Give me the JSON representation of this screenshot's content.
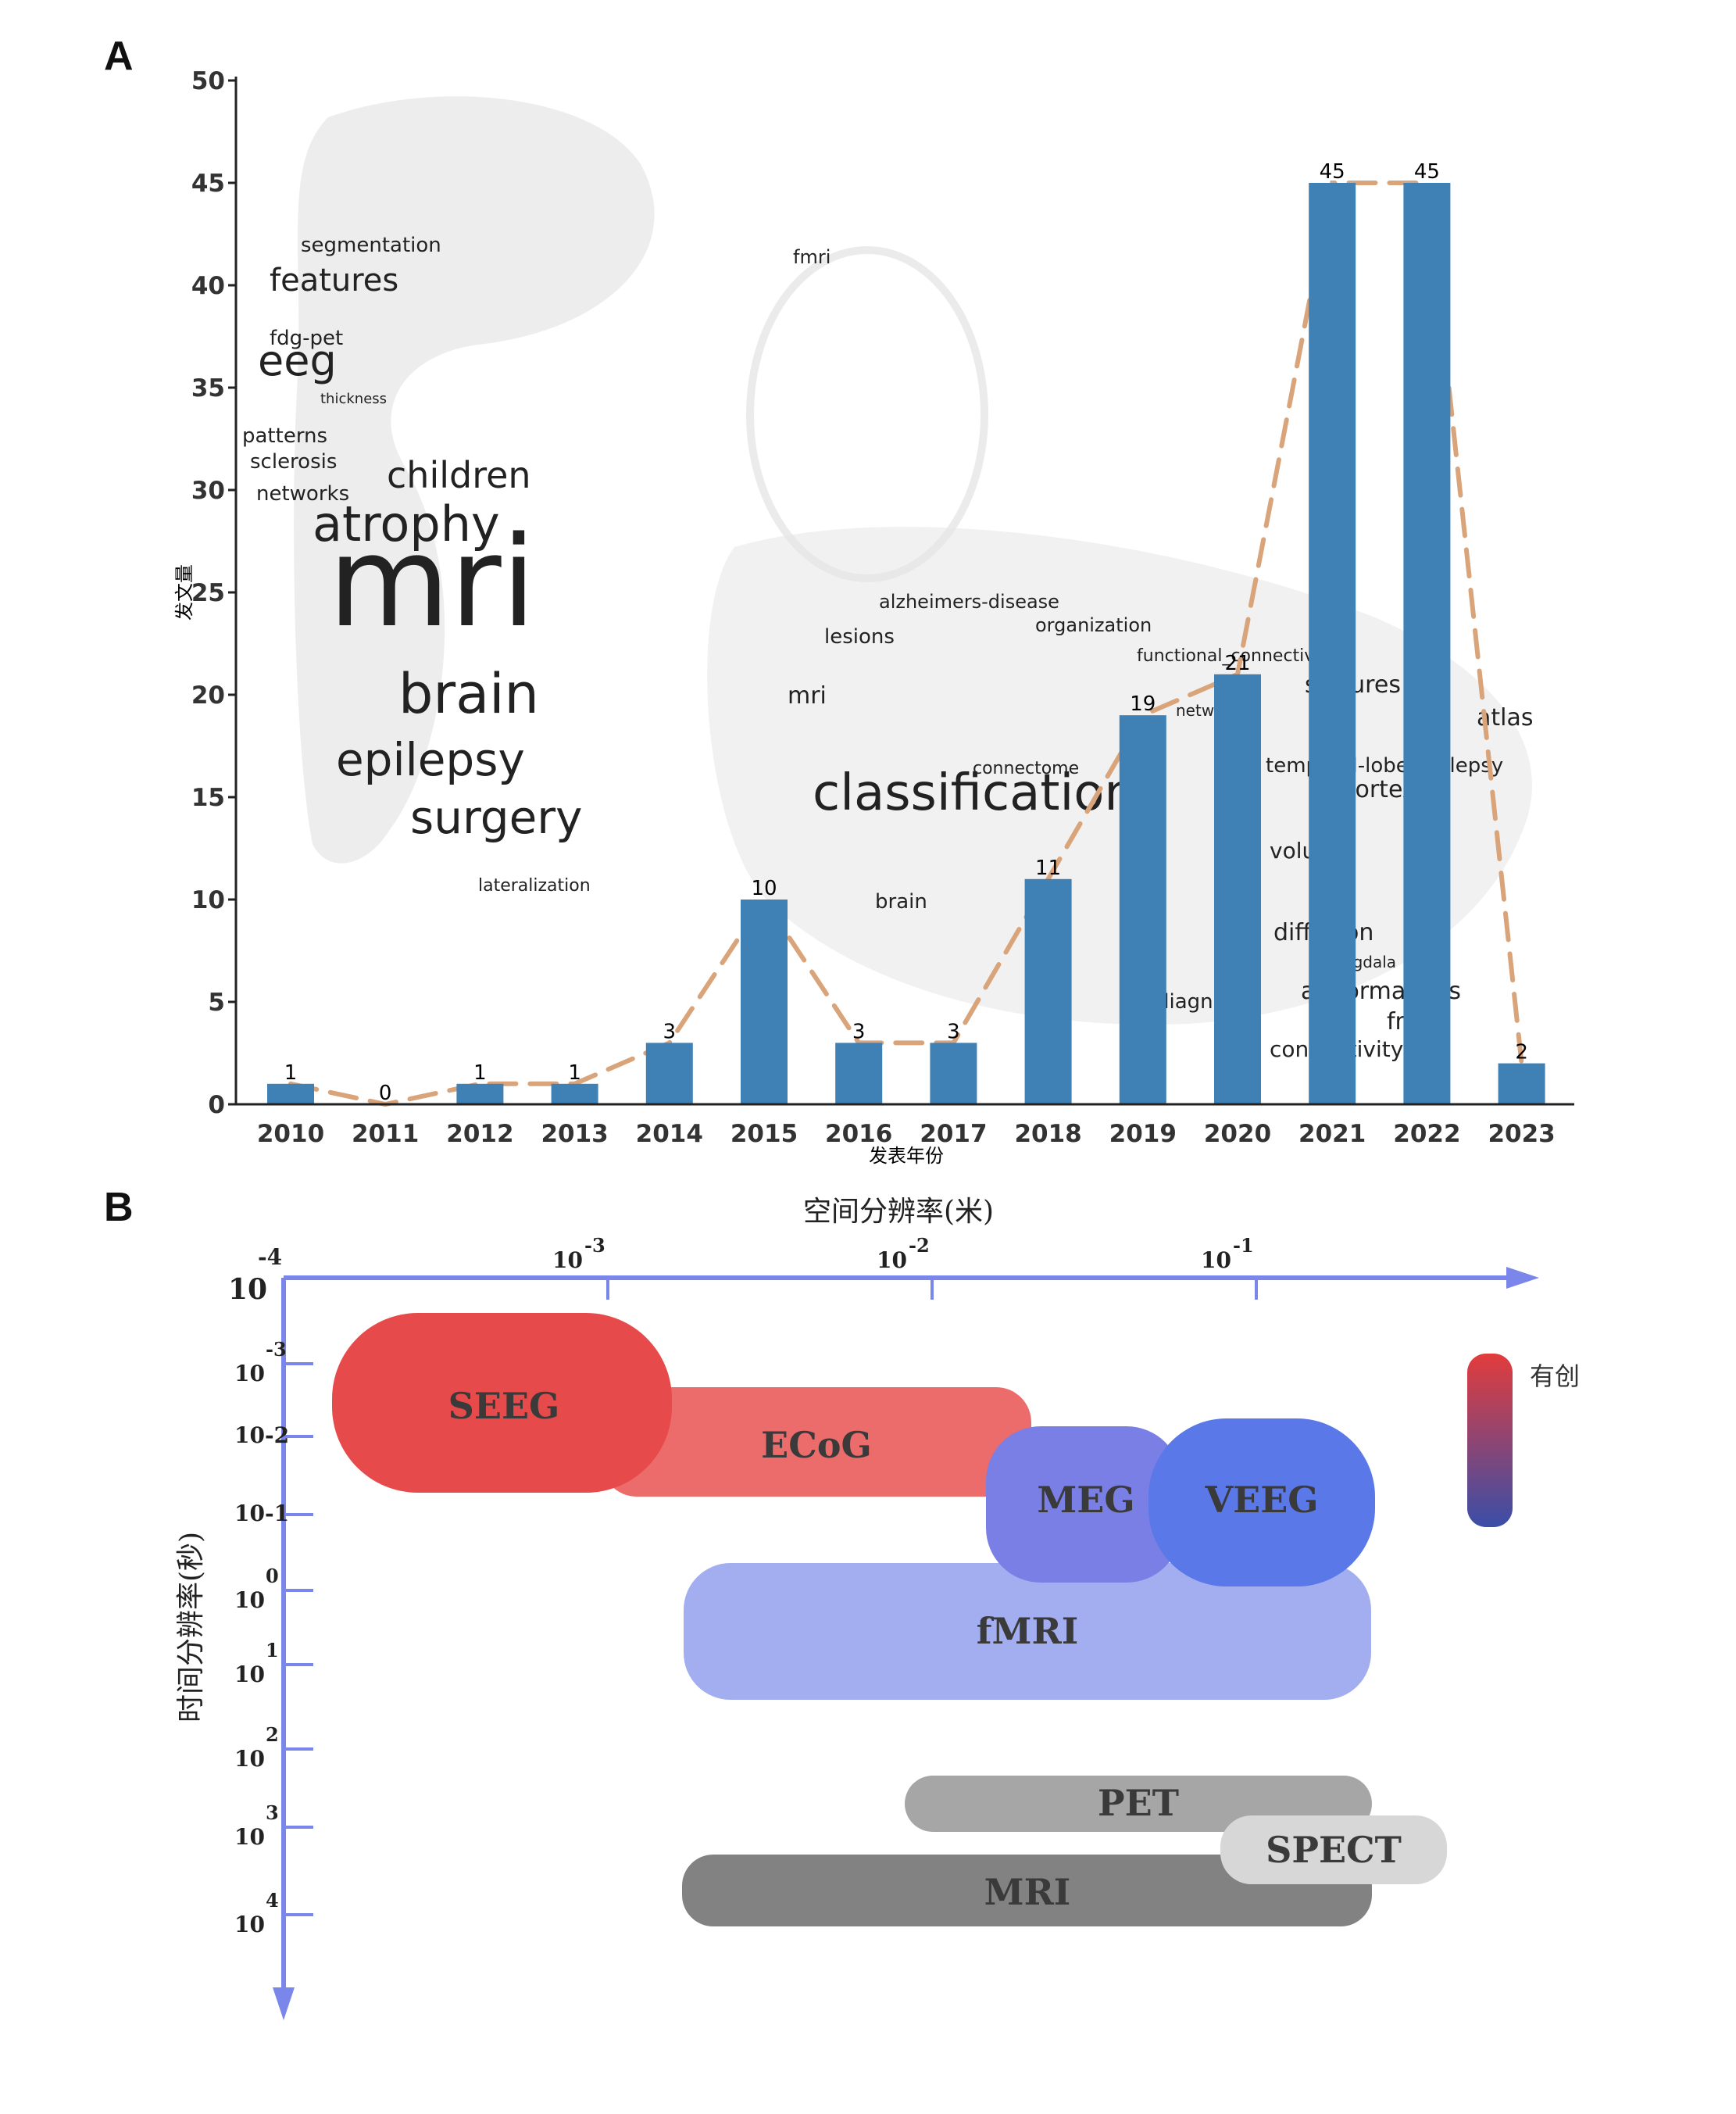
{
  "panels": {
    "a_label": "A",
    "b_label": "B"
  },
  "colors": {
    "bar": "#3f80b5",
    "trend": "#d9a47a",
    "axis": "#222222",
    "wordcloud_text": "#222222",
    "wordcloud_bg": "#e6e6e6",
    "axis_b": "#7b86ea",
    "seeg": "#e64a4a",
    "ecog": "#ec6b6b",
    "meg": "#7a7fe6",
    "veeg": "#5a78e8",
    "fmri": "#a3aef0",
    "pet": "#a6a6a6",
    "spect": "#d7d7d7",
    "mri": "#828282",
    "gradient_top": "#e23c3c",
    "gradient_bottom": "#3a4ea8"
  },
  "chart_data": [
    {
      "type": "bar",
      "categories": [
        "2010",
        "2011",
        "2012",
        "2013",
        "2014",
        "2015",
        "2016",
        "2017",
        "2018",
        "2019",
        "2020",
        "2021",
        "2022",
        "2023"
      ],
      "values": [
        1,
        0,
        1,
        1,
        3,
        10,
        3,
        3,
        11,
        19,
        21,
        45,
        45,
        2
      ],
      "value_labels": [
        "1",
        "0",
        "1",
        "1",
        "3",
        "10",
        "3",
        "3",
        "11",
        "19",
        "21",
        "45",
        "45",
        "2"
      ],
      "trend_line": "dashed",
      "xlabel": "发表年份",
      "ylabel": "发文量",
      "ylim": [
        0,
        50
      ],
      "yticks": [
        "0",
        "5",
        "10",
        "15",
        "20",
        "25",
        "30",
        "35",
        "40",
        "45",
        "50"
      ],
      "grid": false,
      "wordcloud": [
        {
          "text": "mri",
          "weight": 10
        },
        {
          "text": "brain",
          "weight": 6
        },
        {
          "text": "classification",
          "weight": 6
        },
        {
          "text": "atrophy",
          "weight": 5
        },
        {
          "text": "epilepsy",
          "weight": 5
        },
        {
          "text": "surgery",
          "weight": 5
        },
        {
          "text": "eeg",
          "weight": 5
        },
        {
          "text": "children",
          "weight": 4
        },
        {
          "text": "features",
          "weight": 4
        },
        {
          "text": "cortex",
          "weight": 3
        },
        {
          "text": "seizures",
          "weight": 3
        },
        {
          "text": "atlas",
          "weight": 3
        },
        {
          "text": "temporal-lobe_epilepsy",
          "weight": 3
        },
        {
          "text": "diffusion",
          "weight": 3
        },
        {
          "text": "abnormalities",
          "weight": 3
        },
        {
          "text": "volume",
          "weight": 3
        },
        {
          "text": "fmri",
          "weight": 3
        },
        {
          "text": "connectivity",
          "weight": 3
        },
        {
          "text": "diagnosis",
          "weight": 3
        },
        {
          "text": "brain",
          "weight": 3
        },
        {
          "text": "organization",
          "weight": 3
        },
        {
          "text": "functional_connectivity",
          "weight": 2
        },
        {
          "text": "alzheimers-disease",
          "weight": 2
        },
        {
          "text": "lesions",
          "weight": 2
        },
        {
          "text": "connectome",
          "weight": 2
        },
        {
          "text": "segmentation",
          "weight": 2
        },
        {
          "text": "fdg-pet",
          "weight": 2
        },
        {
          "text": "patterns",
          "weight": 2
        },
        {
          "text": "sclerosis",
          "weight": 2
        },
        {
          "text": "networks",
          "weight": 2
        },
        {
          "text": "lateralization",
          "weight": 2
        },
        {
          "text": "mri",
          "weight": 2
        },
        {
          "text": "fmri",
          "weight": 2
        },
        {
          "text": "thickness",
          "weight": 1
        },
        {
          "text": "amygdala",
          "weight": 1
        },
        {
          "text": "network",
          "weight": 1
        }
      ]
    },
    {
      "type": "range",
      "xlabel": "空间分辨率(米)",
      "ylabel": "时间分辨率(秒)",
      "x_ticks": [
        {
          "base": "10",
          "exp": "-4"
        },
        {
          "base": "10",
          "exp": "-3"
        },
        {
          "base": "10",
          "exp": "-2"
        },
        {
          "base": "10",
          "exp": "-1"
        }
      ],
      "y_ticks": [
        {
          "base": "10",
          "exp": "-3"
        },
        {
          "base": "10-2",
          "exp": ""
        },
        {
          "base": "10-1",
          "exp": ""
        },
        {
          "base": "10",
          "exp": "0"
        },
        {
          "base": "10",
          "exp": "1"
        },
        {
          "base": "10",
          "exp": "2"
        },
        {
          "base": "10",
          "exp": "3"
        },
        {
          "base": "10",
          "exp": "4"
        }
      ],
      "legend": {
        "label": "有创",
        "placement": "top-right"
      },
      "modalities": [
        {
          "name": "SEEG",
          "spatial_log10": [
            -3.9,
            -2.85
          ],
          "temporal_log10": [
            -3.4,
            -1.55
          ]
        },
        {
          "name": "ECoG",
          "spatial_log10": [
            -2.9,
            -1.9
          ],
          "temporal_log10": [
            -3.0,
            -1.5
          ]
        },
        {
          "name": "MEG",
          "spatial_log10": [
            -1.95,
            -1.4
          ],
          "temporal_log10": [
            -2.0,
            -0.4
          ]
        },
        {
          "name": "VEEG",
          "spatial_log10": [
            -1.5,
            -0.8
          ],
          "temporal_log10": [
            -2.1,
            -0.1
          ]
        },
        {
          "name": "fMRI",
          "spatial_log10": [
            -2.7,
            -0.7
          ],
          "temporal_log10": [
            -0.25,
            1.1
          ]
        },
        {
          "name": "PET",
          "spatial_log10": [
            -2.0,
            -0.7
          ],
          "temporal_log10": [
            2.0,
            2.7
          ]
        },
        {
          "name": "SPECT",
          "spatial_log10": [
            -1.4,
            -0.5
          ],
          "temporal_log10": [
            2.6,
            3.4
          ]
        },
        {
          "name": "MRI",
          "spatial_log10": [
            -2.7,
            -0.7
          ],
          "temporal_log10": [
            3.0,
            3.9
          ]
        }
      ]
    }
  ]
}
